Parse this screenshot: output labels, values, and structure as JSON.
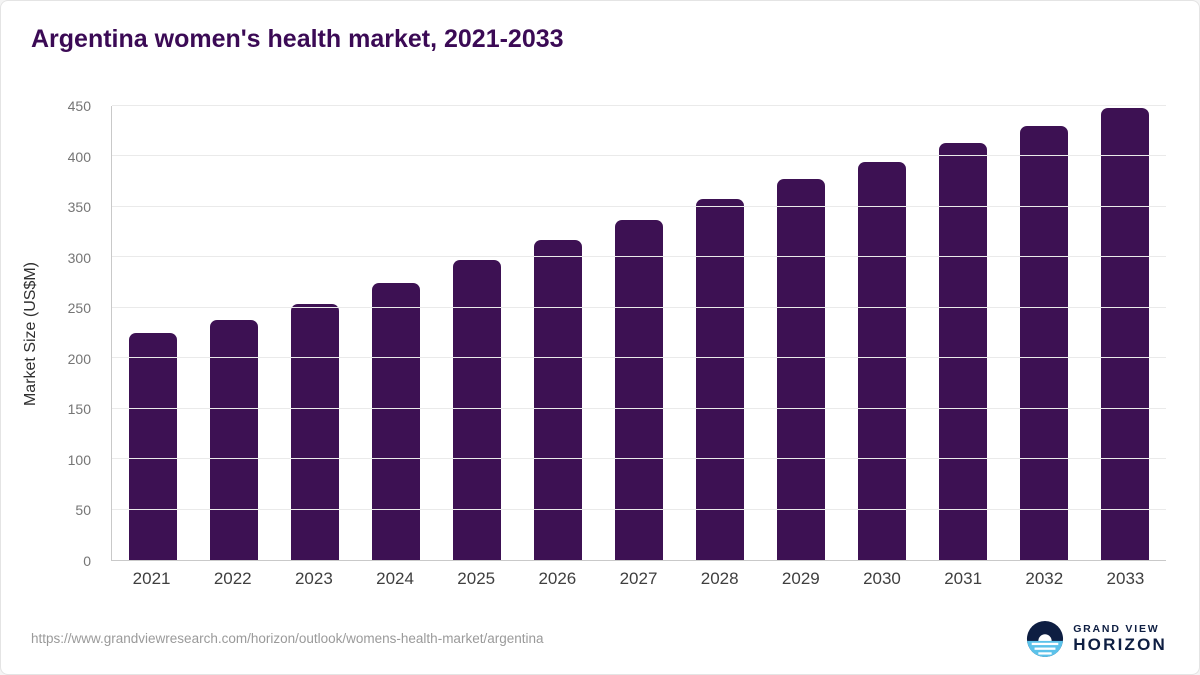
{
  "header": {
    "title": "Argentina women's health market, 2021-2033"
  },
  "chart_data": {
    "type": "bar",
    "title": "Argentina women's health market, 2021-2033",
    "xlabel": "",
    "ylabel": "Market Size (US$M)",
    "categories": [
      "2021",
      "2022",
      "2023",
      "2024",
      "2025",
      "2026",
      "2027",
      "2028",
      "2029",
      "2030",
      "2031",
      "2032",
      "2033"
    ],
    "values": [
      225,
      238,
      254,
      275,
      297,
      317,
      337,
      358,
      378,
      395,
      413,
      430,
      448
    ],
    "ylim": [
      0,
      450
    ],
    "ytick_step": 50,
    "grid": "horizontal",
    "legend": "none"
  },
  "footer": {
    "source_url": "https://www.grandviewresearch.com/horizon/outlook/womens-health-market/argentina",
    "logo": {
      "line1": "GRAND VIEW",
      "line2": "HORIZON"
    }
  },
  "colors": {
    "title": "#3B0A55",
    "bar": "#3D1153",
    "axis": "#C9C9C9",
    "grid": "#EAEAEA",
    "tick": "#757575",
    "xtick": "#3F3F3F",
    "url": "#9A9A9A",
    "logo_navy": "#0E1E42",
    "logo_blue": "#5BC2EA"
  }
}
